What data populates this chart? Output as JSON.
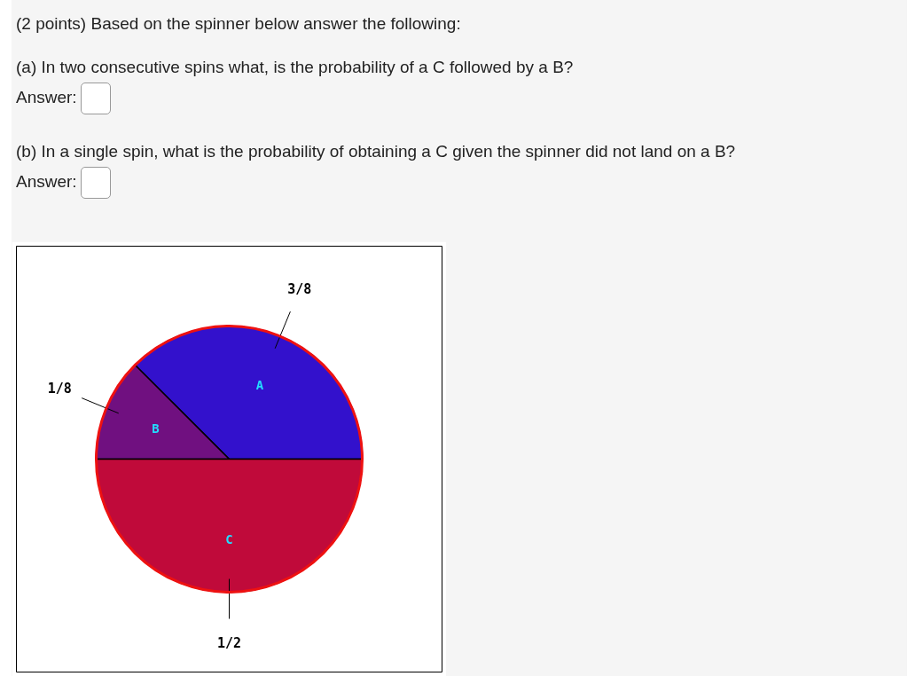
{
  "chart_data": {
    "type": "pie",
    "title": "(2 points) Based on the spinner below answer the following:",
    "annotations": [
      "(a) In two consecutive spins what, is the probability of a C followed by a B?",
      "Answer:",
      "(b) In a single spin, what is the probability of obtaining a C given the spinner did not land on a B?",
      "Answer:"
    ],
    "categories": [
      "A",
      "B",
      "C"
    ],
    "values": [
      0.375,
      0.125,
      0.5
    ],
    "value_labels": [
      "3/8",
      "1/8",
      "1/2"
    ],
    "colors": [
      "#3311cc",
      "#701080",
      "#c00a3a"
    ]
  }
}
